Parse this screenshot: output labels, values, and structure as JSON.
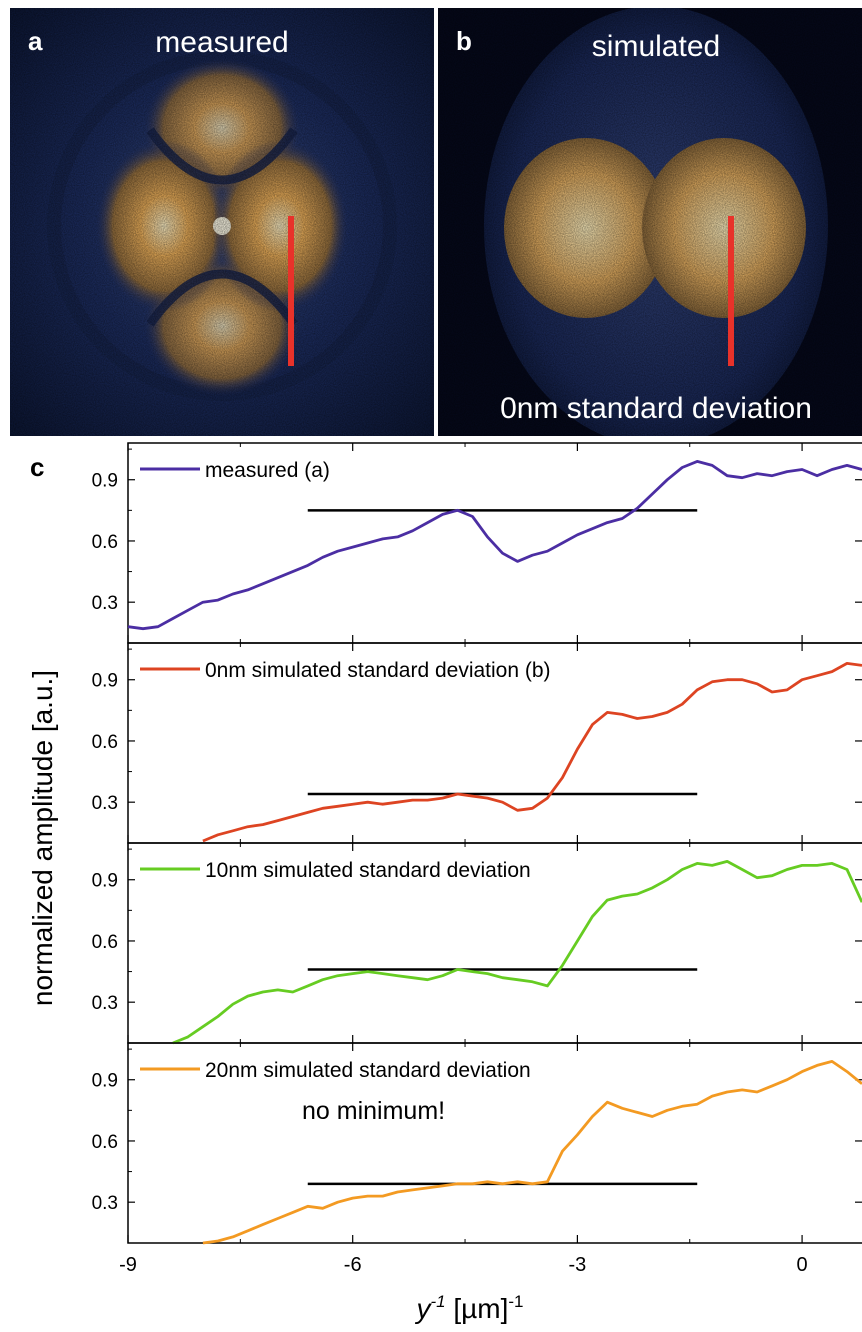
{
  "panels": {
    "a": {
      "letter": "a",
      "title": "measured"
    },
    "b": {
      "letter": "b",
      "title": "simulated",
      "caption": "0nm standard deviation"
    },
    "c": {
      "letter": "c"
    }
  },
  "colors": {
    "measured": "#4b2ea3",
    "sim0": "#dd4422",
    "sim10": "#66cc22",
    "sim20": "#f39a22",
    "marker": "#e8322a",
    "reference": "#000000"
  },
  "chart_data": {
    "type": "line",
    "ylabel": "normalized amplitude [a.u.]",
    "xlabel_var": "y",
    "xlabel_sup": "-1",
    "xlabel_unit": " [µm]",
    "xlabel_unit_sup": "-1",
    "xlim": [
      -9,
      0.8
    ],
    "ylim": [
      0.1,
      1.08
    ],
    "x_ticks": [
      -9,
      -6,
      -3,
      0
    ],
    "x_tick_labels": [
      "-9",
      "-6",
      "-3",
      "0"
    ],
    "y_ticks": [
      0.3,
      0.6,
      0.9
    ],
    "y_tick_labels": [
      "0.3",
      "0.6",
      "0.9"
    ],
    "annotation": "no minimum!",
    "series": [
      {
        "name": "measured (a)",
        "color_key": "measured",
        "reference_line": {
          "x": [
            -6.6,
            -1.4
          ],
          "y": 0.75
        },
        "x": [
          -9.0,
          -8.8,
          -8.6,
          -8.4,
          -8.2,
          -8.0,
          -7.8,
          -7.6,
          -7.4,
          -7.2,
          -7.0,
          -6.8,
          -6.6,
          -6.4,
          -6.2,
          -6.0,
          -5.8,
          -5.6,
          -5.4,
          -5.2,
          -5.0,
          -4.8,
          -4.6,
          -4.4,
          -4.2,
          -4.0,
          -3.8,
          -3.6,
          -3.4,
          -3.2,
          -3.0,
          -2.8,
          -2.6,
          -2.4,
          -2.2,
          -2.0,
          -1.8,
          -1.6,
          -1.4,
          -1.2,
          -1.0,
          -0.8,
          -0.6,
          -0.4,
          -0.2,
          0.0,
          0.2,
          0.4,
          0.6,
          0.8
        ],
        "y": [
          0.18,
          0.17,
          0.18,
          0.22,
          0.26,
          0.3,
          0.31,
          0.34,
          0.36,
          0.39,
          0.42,
          0.45,
          0.48,
          0.52,
          0.55,
          0.57,
          0.59,
          0.61,
          0.62,
          0.65,
          0.69,
          0.73,
          0.75,
          0.72,
          0.62,
          0.54,
          0.5,
          0.53,
          0.55,
          0.59,
          0.63,
          0.66,
          0.69,
          0.71,
          0.76,
          0.83,
          0.9,
          0.96,
          0.99,
          0.97,
          0.92,
          0.91,
          0.93,
          0.92,
          0.94,
          0.95,
          0.92,
          0.95,
          0.97,
          0.95
        ]
      },
      {
        "name": "0nm simulated standard deviation (b)",
        "color_key": "sim0",
        "reference_line": {
          "x": [
            -6.6,
            -1.4
          ],
          "y": 0.34
        },
        "x": [
          -8.0,
          -7.8,
          -7.6,
          -7.4,
          -7.2,
          -7.0,
          -6.8,
          -6.6,
          -6.4,
          -6.2,
          -6.0,
          -5.8,
          -5.6,
          -5.4,
          -5.2,
          -5.0,
          -4.8,
          -4.6,
          -4.4,
          -4.2,
          -4.0,
          -3.8,
          -3.6,
          -3.4,
          -3.2,
          -3.0,
          -2.8,
          -2.6,
          -2.4,
          -2.2,
          -2.0,
          -1.8,
          -1.6,
          -1.4,
          -1.2,
          -1.0,
          -0.8,
          -0.6,
          -0.4,
          -0.2,
          0.0,
          0.2,
          0.4,
          0.6,
          0.8
        ],
        "y": [
          0.11,
          0.14,
          0.16,
          0.18,
          0.19,
          0.21,
          0.23,
          0.25,
          0.27,
          0.28,
          0.29,
          0.3,
          0.29,
          0.3,
          0.31,
          0.31,
          0.32,
          0.34,
          0.33,
          0.32,
          0.3,
          0.26,
          0.27,
          0.32,
          0.42,
          0.56,
          0.68,
          0.74,
          0.73,
          0.71,
          0.72,
          0.74,
          0.78,
          0.85,
          0.89,
          0.9,
          0.9,
          0.88,
          0.84,
          0.85,
          0.9,
          0.92,
          0.94,
          0.98,
          0.97
        ]
      },
      {
        "name": "10nm simulated standard deviation",
        "color_key": "sim10",
        "reference_line": {
          "x": [
            -6.6,
            -1.4
          ],
          "y": 0.46
        },
        "x": [
          -8.4,
          -8.2,
          -8.0,
          -7.8,
          -7.6,
          -7.4,
          -7.2,
          -7.0,
          -6.8,
          -6.6,
          -6.4,
          -6.2,
          -6.0,
          -5.8,
          -5.6,
          -5.4,
          -5.2,
          -5.0,
          -4.8,
          -4.6,
          -4.4,
          -4.2,
          -4.0,
          -3.8,
          -3.6,
          -3.4,
          -3.2,
          -3.0,
          -2.8,
          -2.6,
          -2.4,
          -2.2,
          -2.0,
          -1.8,
          -1.6,
          -1.4,
          -1.2,
          -1.0,
          -0.8,
          -0.6,
          -0.4,
          -0.2,
          0.0,
          0.2,
          0.4,
          0.6,
          0.8
        ],
        "y": [
          0.1,
          0.13,
          0.18,
          0.23,
          0.29,
          0.33,
          0.35,
          0.36,
          0.35,
          0.38,
          0.41,
          0.43,
          0.44,
          0.45,
          0.44,
          0.43,
          0.42,
          0.41,
          0.43,
          0.46,
          0.45,
          0.44,
          0.42,
          0.41,
          0.4,
          0.38,
          0.48,
          0.6,
          0.72,
          0.8,
          0.82,
          0.83,
          0.86,
          0.9,
          0.95,
          0.98,
          0.97,
          0.99,
          0.95,
          0.91,
          0.92,
          0.95,
          0.97,
          0.97,
          0.98,
          0.95,
          0.79
        ]
      },
      {
        "name": "20nm simulated standard deviation",
        "color_key": "sim20",
        "reference_line": {
          "x": [
            -6.6,
            -1.4
          ],
          "y": 0.39
        },
        "x": [
          -8.0,
          -7.8,
          -7.6,
          -7.4,
          -7.2,
          -7.0,
          -6.8,
          -6.6,
          -6.4,
          -6.2,
          -6.0,
          -5.8,
          -5.6,
          -5.4,
          -5.2,
          -5.0,
          -4.8,
          -4.6,
          -4.4,
          -4.2,
          -4.0,
          -3.8,
          -3.6,
          -3.4,
          -3.2,
          -3.0,
          -2.8,
          -2.6,
          -2.4,
          -2.2,
          -2.0,
          -1.8,
          -1.6,
          -1.4,
          -1.2,
          -1.0,
          -0.8,
          -0.6,
          -0.4,
          -0.2,
          0.0,
          0.2,
          0.4,
          0.6,
          0.8
        ],
        "y": [
          0.1,
          0.11,
          0.13,
          0.16,
          0.19,
          0.22,
          0.25,
          0.28,
          0.27,
          0.3,
          0.32,
          0.33,
          0.33,
          0.35,
          0.36,
          0.37,
          0.38,
          0.39,
          0.39,
          0.4,
          0.39,
          0.4,
          0.39,
          0.4,
          0.55,
          0.63,
          0.72,
          0.79,
          0.76,
          0.74,
          0.72,
          0.75,
          0.77,
          0.78,
          0.82,
          0.84,
          0.85,
          0.84,
          0.87,
          0.9,
          0.94,
          0.97,
          0.99,
          0.94,
          0.88
        ]
      }
    ]
  }
}
